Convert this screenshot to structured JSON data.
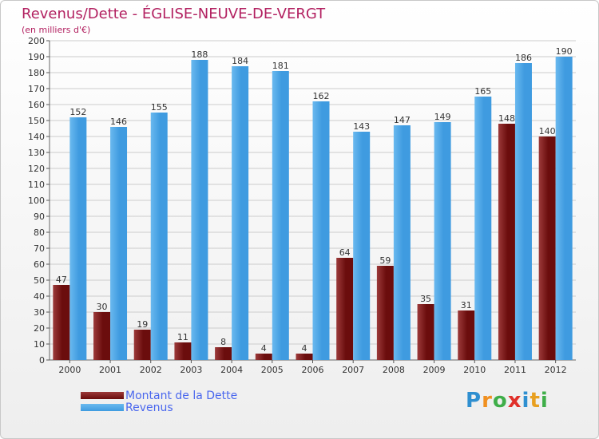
{
  "title": "Revenus/Dette - ÉGLISE-NEUVE-DE-VERGT",
  "subtitle": "(en milliers d'€)",
  "colors": {
    "dette": "#6b0d0d",
    "dette_light": "#9c3a3a",
    "revenus": "#3f9be0",
    "revenus_light": "#6ab9ef",
    "grid": "#cccccc",
    "title": "#b22060"
  },
  "legend": {
    "dette_label": "Montant de la Dette",
    "revenus_label": "Revenus"
  },
  "logo": {
    "letters": [
      "P",
      "r",
      "o",
      "x",
      "i",
      "t",
      "i"
    ],
    "colors": [
      "#2f8fd0",
      "#f09020",
      "#3fae49",
      "#e0302a",
      "#2f8fd0",
      "#e8a020",
      "#3fae49"
    ]
  },
  "chart_data": {
    "type": "bar",
    "categories": [
      "2000",
      "2001",
      "2002",
      "2003",
      "2004",
      "2005",
      "2006",
      "2007",
      "2008",
      "2009",
      "2010",
      "2011",
      "2012"
    ],
    "series": [
      {
        "name": "Montant de la Dette",
        "values": [
          47,
          30,
          19,
          11,
          8,
          4,
          4,
          64,
          59,
          35,
          31,
          148,
          140
        ]
      },
      {
        "name": "Revenus",
        "values": [
          152,
          146,
          155,
          188,
          184,
          181,
          162,
          143,
          147,
          149,
          165,
          186,
          190
        ]
      }
    ],
    "ylim": [
      0,
      200
    ],
    "yticks": [
      0,
      10,
      20,
      30,
      40,
      50,
      60,
      70,
      80,
      90,
      100,
      110,
      120,
      130,
      140,
      150,
      160,
      170,
      180,
      190,
      200
    ],
    "grid": true,
    "legend_position": "bottom-left"
  }
}
